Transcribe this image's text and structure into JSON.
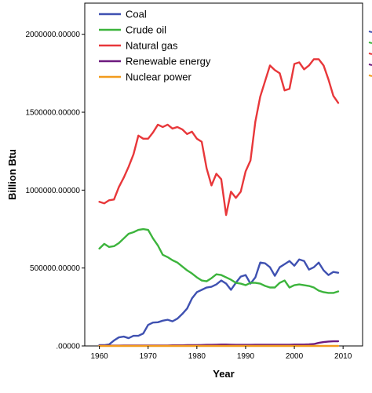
{
  "chart_data": {
    "type": "line",
    "xlabel": "Year",
    "ylabel": "Billion Btu",
    "xlim": [
      1957,
      2014
    ],
    "ylim": [
      0,
      2200000
    ],
    "x_ticks": [
      1960,
      1970,
      1980,
      1990,
      2000,
      2010
    ],
    "y_ticks": [
      0,
      500000,
      1000000,
      1500000,
      2000000
    ],
    "x_tick_labels": [
      "1960",
      "1970",
      "1980",
      "1990",
      "2000",
      "2010"
    ],
    "y_tick_labels": [
      ".00000",
      "500000.00000",
      "1000000.00000",
      "1500000.00000",
      "2000000.00000"
    ],
    "grid": false,
    "legend_placement": "top-left",
    "x": [
      1960,
      1961,
      1962,
      1963,
      1964,
      1965,
      1966,
      1967,
      1968,
      1969,
      1970,
      1971,
      1972,
      1973,
      1974,
      1975,
      1976,
      1977,
      1978,
      1979,
      1980,
      1981,
      1982,
      1983,
      1984,
      1985,
      1986,
      1987,
      1988,
      1989,
      1990,
      1991,
      1992,
      1993,
      1994,
      1995,
      1996,
      1997,
      1998,
      1999,
      2000,
      2001,
      2002,
      2003,
      2004,
      2005,
      2006,
      2007,
      2008,
      2009
    ],
    "series": [
      {
        "name": "Coal",
        "color": "#3f51b1",
        "values": [
          5000,
          5000,
          10000,
          35000,
          55000,
          60000,
          50000,
          65000,
          65000,
          80000,
          135000,
          150000,
          152000,
          162000,
          168000,
          158000,
          175000,
          205000,
          240000,
          305000,
          345000,
          360000,
          375000,
          380000,
          395000,
          420000,
          400000,
          360000,
          405000,
          445000,
          455000,
          400000,
          440000,
          535000,
          530000,
          505000,
          450000,
          505000,
          525000,
          545000,
          515000,
          555000,
          545000,
          490000,
          505000,
          535000,
          485000,
          455000,
          475000,
          470000
        ]
      },
      {
        "name": "Crude oil",
        "color": "#3cb43c",
        "values": [
          625000,
          655000,
          635000,
          640000,
          660000,
          690000,
          720000,
          730000,
          745000,
          750000,
          745000,
          690000,
          645000,
          585000,
          570000,
          550000,
          535000,
          510000,
          485000,
          465000,
          440000,
          420000,
          415000,
          435000,
          460000,
          455000,
          440000,
          425000,
          405000,
          400000,
          390000,
          405000,
          405000,
          400000,
          385000,
          375000,
          375000,
          405000,
          420000,
          375000,
          390000,
          395000,
          390000,
          385000,
          375000,
          355000,
          345000,
          340000,
          340000,
          350000
        ]
      },
      {
        "name": "Natural gas",
        "color": "#e8373a",
        "values": [
          925000,
          915000,
          935000,
          940000,
          1020000,
          1080000,
          1150000,
          1230000,
          1350000,
          1330000,
          1330000,
          1370000,
          1420000,
          1405000,
          1420000,
          1395000,
          1405000,
          1390000,
          1360000,
          1375000,
          1330000,
          1310000,
          1140000,
          1030000,
          1105000,
          1070000,
          840000,
          990000,
          950000,
          990000,
          1120000,
          1190000,
          1440000,
          1600000,
          1700000,
          1800000,
          1770000,
          1750000,
          1640000,
          1650000,
          1810000,
          1820000,
          1775000,
          1800000,
          1840000,
          1840000,
          1800000,
          1710000,
          1605000,
          1560000
        ]
      },
      {
        "name": "Renewable energy",
        "color": "#6d1a7e",
        "values": [
          2000,
          2000,
          2000,
          2000,
          2000,
          3000,
          3000,
          3000,
          3000,
          3000,
          3000,
          3000,
          3000,
          3000,
          3000,
          4000,
          4000,
          4000,
          5000,
          5000,
          5000,
          6000,
          7000,
          7000,
          8000,
          9000,
          9000,
          8000,
          7000,
          7000,
          7000,
          7000,
          8000,
          8000,
          8000,
          8000,
          8000,
          8000,
          8000,
          8000,
          9000,
          9000,
          9000,
          10000,
          12000,
          20000,
          25000,
          28000,
          30000,
          30000
        ]
      },
      {
        "name": "Nuclear power",
        "color": "#f29b1d",
        "values": [
          0,
          0,
          0,
          0,
          0,
          0,
          0,
          0,
          0,
          0,
          0,
          0,
          0,
          0,
          0,
          0,
          0,
          0,
          0,
          0,
          0,
          0,
          0,
          0,
          0,
          0,
          0,
          0,
          0,
          0,
          0,
          0,
          0,
          0,
          0,
          0,
          0,
          0,
          0,
          0,
          0,
          0,
          0,
          0,
          0,
          0,
          0,
          0,
          0,
          0
        ]
      }
    ],
    "legend_entries": [
      "Coal",
      "Crude oil",
      "Natural gas",
      "Renewable energy",
      "Nuclear power"
    ]
  }
}
